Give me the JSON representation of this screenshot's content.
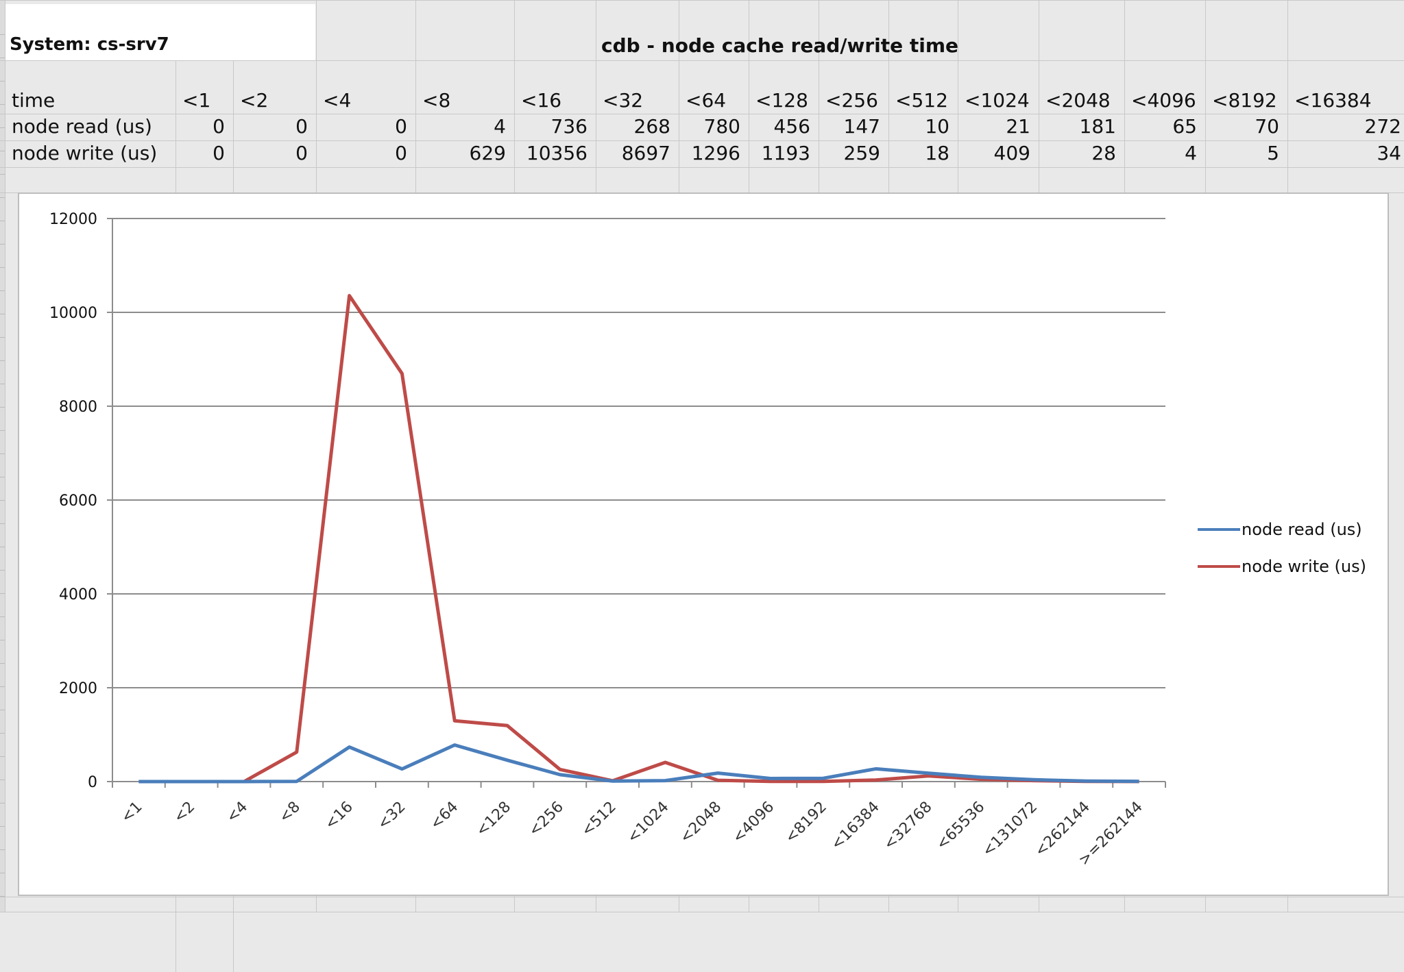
{
  "sheet": {
    "system_label": "System: cs-srv7",
    "title": "cdb - node cache read/write time",
    "header_label": "time",
    "columns": [
      "<1",
      "<2",
      "<4",
      "<8",
      "<16",
      "<32",
      "<64",
      "<128",
      "<256",
      "<512",
      "<1024",
      "<2048",
      "<4096",
      "<8192",
      "<16384"
    ],
    "rows": [
      {
        "label": "node read (us)",
        "values": [
          0,
          0,
          0,
          4,
          736,
          268,
          780,
          456,
          147,
          10,
          21,
          181,
          65,
          70,
          272
        ]
      },
      {
        "label": "node write (us)",
        "values": [
          0,
          0,
          0,
          629,
          10356,
          8697,
          1296,
          1193,
          259,
          18,
          409,
          28,
          4,
          5,
          34
        ]
      }
    ]
  },
  "chart_data": {
    "type": "line",
    "title": "",
    "xlabel": "",
    "ylabel": "",
    "ylim": [
      0,
      12000
    ],
    "yticks": [
      0,
      2000,
      4000,
      6000,
      8000,
      10000,
      12000
    ],
    "grid": true,
    "legend_position": "right",
    "categories": [
      "<1",
      "<2",
      "<4",
      "<8",
      "<16",
      "<32",
      "<64",
      "<128",
      "<256",
      "<512",
      "<1024",
      "<2048",
      "<4096",
      "<8192",
      "<16384",
      "<32768",
      "<65536",
      "<131072",
      "<262144",
      ">=262144"
    ],
    "series": [
      {
        "name": "node read (us)",
        "color": "#4a7ebb",
        "values": [
          0,
          0,
          0,
          4,
          736,
          268,
          780,
          456,
          147,
          10,
          21,
          181,
          65,
          70,
          272,
          180,
          90,
          40,
          10,
          5
        ]
      },
      {
        "name": "node write (us)",
        "color": "#be4b48",
        "values": [
          0,
          0,
          0,
          629,
          10356,
          8697,
          1296,
          1193,
          259,
          18,
          409,
          28,
          4,
          5,
          34,
          120,
          50,
          20,
          5,
          2
        ]
      }
    ]
  }
}
